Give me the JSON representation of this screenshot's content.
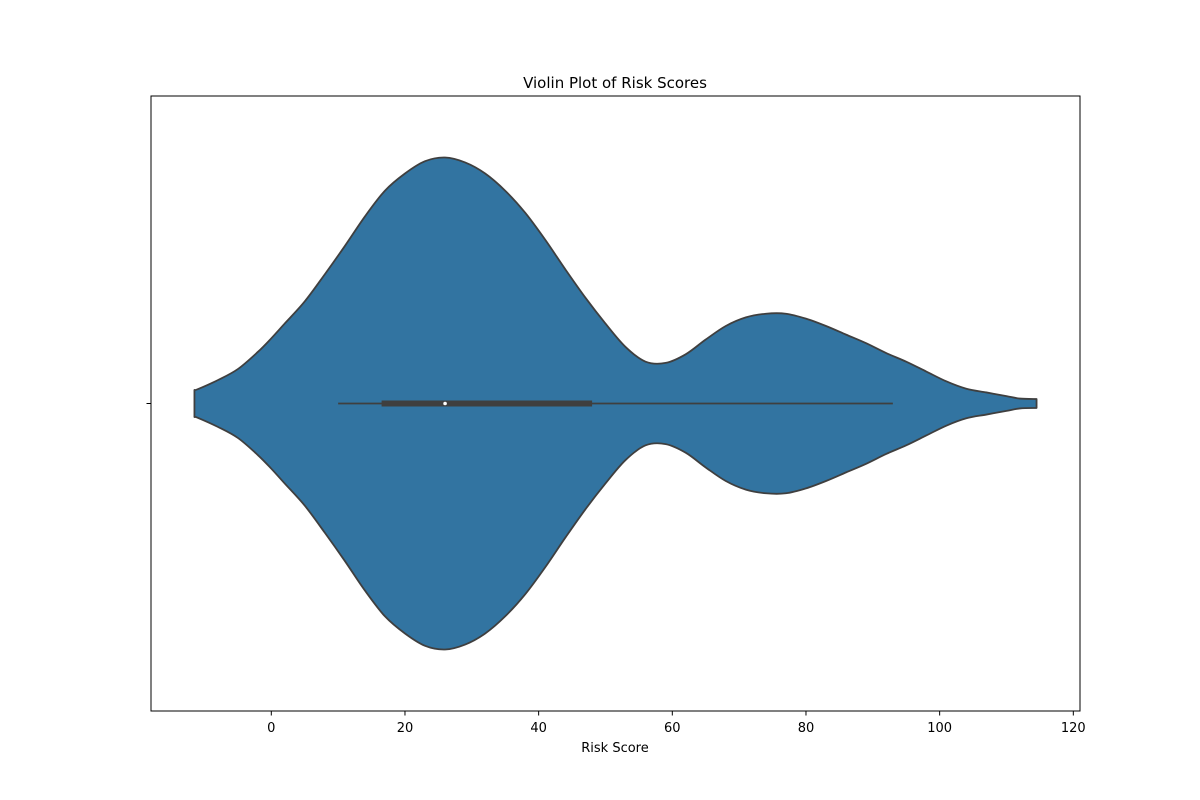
{
  "chart_data": {
    "type": "violin",
    "title": "Violin Plot of Risk Scores",
    "xlabel": "Risk Score",
    "ylabel": "",
    "xlim": [
      -18,
      121
    ],
    "xticks": [
      0,
      20,
      40,
      60,
      80,
      100,
      120
    ],
    "xtick_labels": [
      "0",
      "20",
      "40",
      "60",
      "80",
      "100",
      "120"
    ],
    "grid": false,
    "orientation": "horizontal",
    "density_profile": {
      "x": [
        -11.5,
        -11,
        -8,
        -5,
        -2,
        0,
        2,
        5,
        8,
        11,
        14,
        17,
        20,
        23,
        26,
        29,
        32,
        35,
        38,
        41,
        44,
        47,
        50,
        53,
        56,
        59,
        62,
        65,
        68,
        71,
        74,
        77,
        80,
        83,
        86,
        89,
        92,
        95,
        98,
        101,
        104,
        107,
        110,
        112,
        114.5
      ],
      "relative_width": [
        0.055,
        0.058,
        0.095,
        0.14,
        0.21,
        0.265,
        0.325,
        0.415,
        0.525,
        0.64,
        0.76,
        0.865,
        0.935,
        0.985,
        1.0,
        0.98,
        0.935,
        0.865,
        0.775,
        0.665,
        0.545,
        0.43,
        0.325,
        0.23,
        0.17,
        0.165,
        0.2,
        0.26,
        0.315,
        0.35,
        0.365,
        0.365,
        0.345,
        0.315,
        0.28,
        0.245,
        0.205,
        0.17,
        0.13,
        0.09,
        0.06,
        0.045,
        0.03,
        0.02,
        0.018
      ]
    },
    "whisker_low": 10,
    "q1": 16.5,
    "median": 26,
    "q3": 48,
    "whisker_high": 93,
    "colors": {
      "fill": "#3274a1",
      "edge": "#3f3f3f",
      "box": "#3f3f3f",
      "median": "#ffffff"
    }
  }
}
